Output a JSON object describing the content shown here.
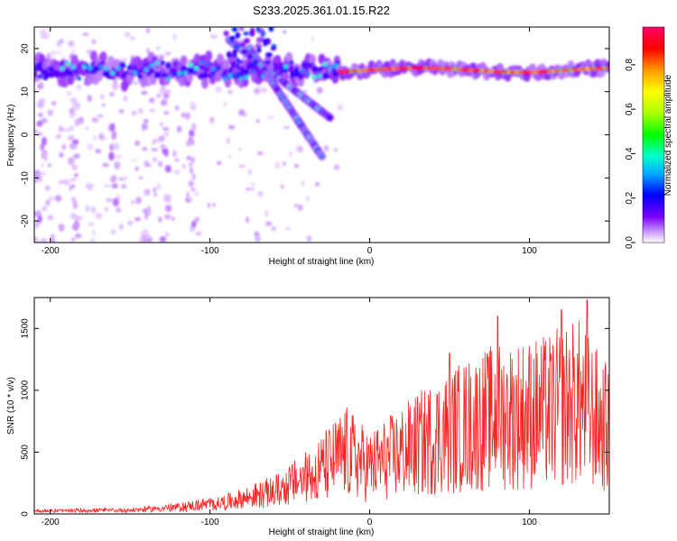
{
  "title": "S233.2025.361.01.15.R22",
  "chart_data": [
    {
      "type": "heatmap",
      "name": "spectrogram",
      "xlabel": "Height of straight line (km)",
      "ylabel": "Frequency (Hz)",
      "xlim": [
        -210,
        150
      ],
      "ylim": [
        -25,
        25
      ],
      "x_ticks": [
        -200,
        -100,
        0,
        100
      ],
      "y_ticks": [
        -20,
        -10,
        0,
        10,
        20
      ],
      "colorbar": {
        "label": "Normalized spectral amplitude",
        "range": [
          0,
          0.97
        ],
        "ticks": [
          "0.0",
          "0.2",
          "0.4",
          "0.6",
          "0.8"
        ],
        "colors": [
          "#ffffff",
          "#cc99ff",
          "#7a00ff",
          "#0000ff",
          "#00aaff",
          "#00ffcc",
          "#00ff00",
          "#aaff00",
          "#ffff00",
          "#ff9900",
          "#ff0000",
          "#ff0066"
        ]
      },
      "features": [
        {
          "name": "main-band",
          "x_start": -210,
          "x_end": 150,
          "freq_hz": 15
        },
        {
          "name": "descending-track-1",
          "x_start": -88,
          "x_end": -25,
          "freq_start_hz": 22,
          "freq_end_hz": 4
        },
        {
          "name": "descending-track-2",
          "x_start": -75,
          "x_end": -30,
          "freq_start_hz": 20,
          "freq_end_hz": -5
        }
      ]
    },
    {
      "type": "line",
      "name": "snr",
      "xlabel": "Height of straight line (km)",
      "ylabel": "SNR (10 * v/v)",
      "xlim": [
        -210,
        150
      ],
      "ylim": [
        0,
        1750
      ],
      "x_ticks": [
        -200,
        -100,
        0,
        100
      ],
      "y_ticks": [
        0,
        500,
        1000,
        1500
      ],
      "color": "#ff2222",
      "envelope": [
        {
          "x": -210,
          "y": 30
        },
        {
          "x": -150,
          "y": 40
        },
        {
          "x": -120,
          "y": 80
        },
        {
          "x": -90,
          "y": 150
        },
        {
          "x": -60,
          "y": 300
        },
        {
          "x": -40,
          "y": 500
        },
        {
          "x": -25,
          "y": 700
        },
        {
          "x": -15,
          "y": 850
        },
        {
          "x": 0,
          "y": 650
        },
        {
          "x": 20,
          "y": 850
        },
        {
          "x": 50,
          "y": 1150
        },
        {
          "x": 80,
          "y": 1350
        },
        {
          "x": 110,
          "y": 1400
        },
        {
          "x": 130,
          "y": 1550
        },
        {
          "x": 150,
          "y": 1150
        }
      ],
      "peaks": [
        {
          "x": 80,
          "y": 1600
        },
        {
          "x": 120,
          "y": 1650
        },
        {
          "x": 136,
          "y": 1730
        },
        {
          "x": 50,
          "y": 1300
        }
      ]
    }
  ]
}
